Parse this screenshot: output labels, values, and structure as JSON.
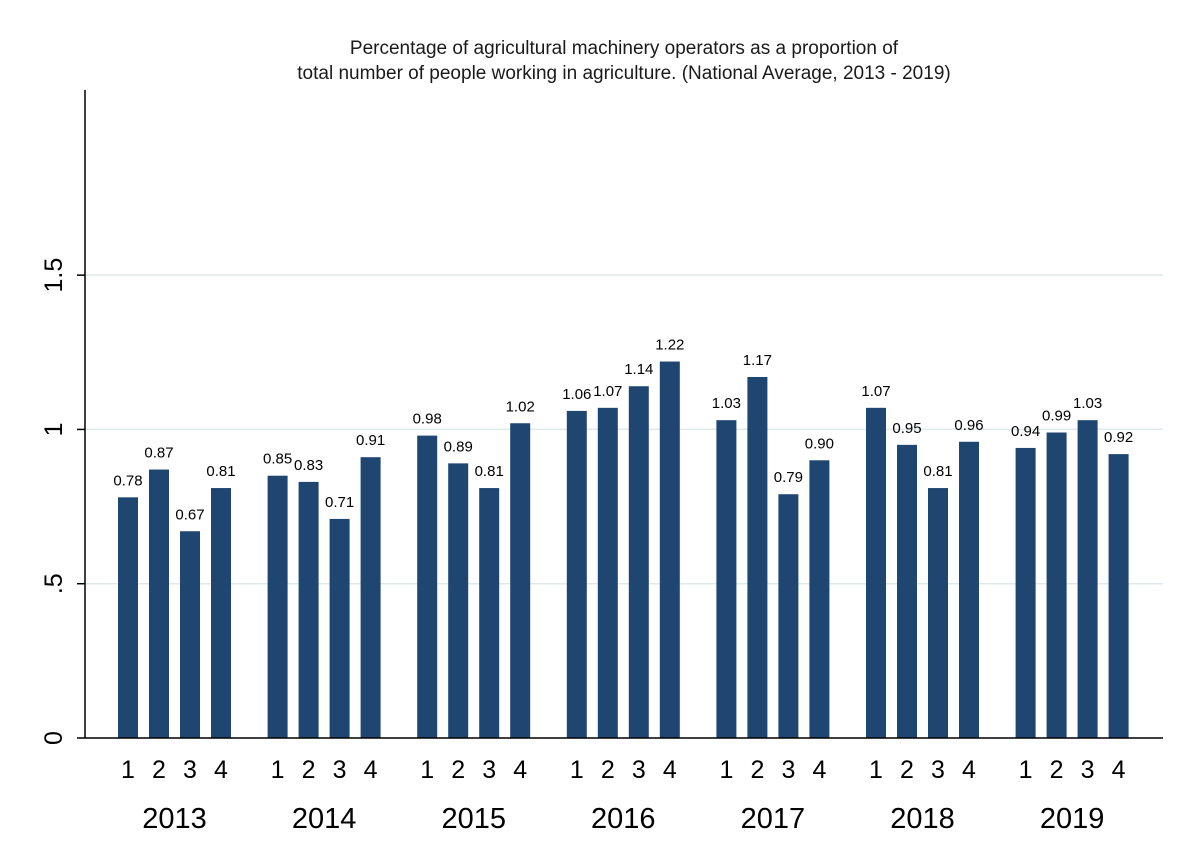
{
  "chart_data": {
    "type": "bar",
    "title": [
      "Percentage of agricultural machinery operators as a proportion of",
      "total number of people working in agriculture. (National Average, 2013 - 2019)"
    ],
    "xlabel": "",
    "ylabel": "",
    "ylim": [
      0,
      2.1
    ],
    "yticks": [
      {
        "value": 0,
        "label": "0"
      },
      {
        "value": 0.5,
        "label": ".5"
      },
      {
        "value": 1,
        "label": "1"
      },
      {
        "value": 1.5,
        "label": "1.5"
      }
    ],
    "grid": true,
    "bar_color": "#1f4670",
    "grid_color": "#dfe8ea",
    "groups": [
      {
        "year": "2013",
        "quarters": [
          "1",
          "2",
          "3",
          "4"
        ],
        "values": [
          0.78,
          0.87,
          0.67,
          0.81
        ],
        "labels": [
          "0.78",
          "0.87",
          "0.67",
          "0.81"
        ]
      },
      {
        "year": "2014",
        "quarters": [
          "1",
          "2",
          "3",
          "4"
        ],
        "values": [
          0.85,
          0.83,
          0.71,
          0.91
        ],
        "labels": [
          "0.85",
          "0.83",
          "0.71",
          "0.91"
        ]
      },
      {
        "year": "2015",
        "quarters": [
          "1",
          "2",
          "3",
          "4"
        ],
        "values": [
          0.98,
          0.89,
          0.81,
          1.02
        ],
        "labels": [
          "0.98",
          "0.89",
          "0.81",
          "1.02"
        ]
      },
      {
        "year": "2016",
        "quarters": [
          "1",
          "2",
          "3",
          "4"
        ],
        "values": [
          1.06,
          1.07,
          1.14,
          1.22
        ],
        "labels": [
          "1.06",
          "1.07",
          "1.14",
          "1.22"
        ]
      },
      {
        "year": "2017",
        "quarters": [
          "1",
          "2",
          "3",
          "4"
        ],
        "values": [
          1.03,
          1.17,
          0.79,
          0.9
        ],
        "labels": [
          "1.03",
          "1.17",
          "0.79",
          "0.90"
        ]
      },
      {
        "year": "2018",
        "quarters": [
          "1",
          "2",
          "3",
          "4"
        ],
        "values": [
          1.07,
          0.95,
          0.81,
          0.96
        ],
        "labels": [
          "1.07",
          "0.95",
          "0.81",
          "0.96"
        ]
      },
      {
        "year": "2019",
        "quarters": [
          "1",
          "2",
          "3",
          "4"
        ],
        "values": [
          0.94,
          0.99,
          1.03,
          0.92
        ],
        "labels": [
          "0.94",
          "0.99",
          "1.03",
          "0.92"
        ]
      }
    ]
  }
}
